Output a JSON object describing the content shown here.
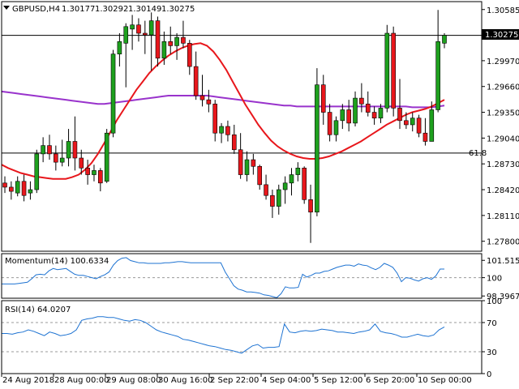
{
  "chart_data": [
    {
      "type": "candlestick",
      "title": "GBPUSD,H4",
      "ohlc_header": {
        "open": "1.30177",
        "high": "1.30292",
        "low": "1.30149",
        "close": "1.30275"
      },
      "symbol_icon": "triangle-down-icon",
      "current_price_label": "1.30275",
      "current_price": 1.30275,
      "fib_level": {
        "label": "61.8",
        "price": 1.2886
      },
      "ylim": [
        1.2768,
        1.3068
      ],
      "y_ticks": [
        "1.30585",
        "1.29970",
        "1.29660",
        "1.29350",
        "1.29040",
        "1.28730",
        "1.28420",
        "1.28110",
        "1.27800"
      ],
      "x_ticks": [
        "24 Aug 2018",
        "28 Aug 00:00",
        "29 Aug 08:00",
        "30 Aug 16:00",
        "2 Sep 22:00",
        "4 Sep 04:00",
        "5 Sep 12:00",
        "6 Sep 20:00",
        "10 Sep 00:00"
      ],
      "candles": [
        {
          "o": 1.285,
          "h": 1.2858,
          "l": 1.2838,
          "c": 1.2845
        },
        {
          "o": 1.2845,
          "h": 1.2852,
          "l": 1.283,
          "c": 1.284
        },
        {
          "o": 1.2838,
          "h": 1.2858,
          "l": 1.2834,
          "c": 1.2852
        },
        {
          "o": 1.2852,
          "h": 1.286,
          "l": 1.2828,
          "c": 1.2835
        },
        {
          "o": 1.2838,
          "h": 1.2852,
          "l": 1.283,
          "c": 1.2842
        },
        {
          "o": 1.2842,
          "h": 1.289,
          "l": 1.2838,
          "c": 1.2885
        },
        {
          "o": 1.2885,
          "h": 1.2905,
          "l": 1.2875,
          "c": 1.2895
        },
        {
          "o": 1.2895,
          "h": 1.2908,
          "l": 1.2878,
          "c": 1.2885
        },
        {
          "o": 1.2885,
          "h": 1.2895,
          "l": 1.2865,
          "c": 1.2875
        },
        {
          "o": 1.2875,
          "h": 1.2902,
          "l": 1.287,
          "c": 1.288
        },
        {
          "o": 1.288,
          "h": 1.2915,
          "l": 1.287,
          "c": 1.29
        },
        {
          "o": 1.29,
          "h": 1.293,
          "l": 1.2865,
          "c": 1.288
        },
        {
          "o": 1.288,
          "h": 1.289,
          "l": 1.286,
          "c": 1.2868
        },
        {
          "o": 1.2868,
          "h": 1.2878,
          "l": 1.2848,
          "c": 1.286
        },
        {
          "o": 1.286,
          "h": 1.2872,
          "l": 1.2852,
          "c": 1.2865
        },
        {
          "o": 1.2865,
          "h": 1.2868,
          "l": 1.284,
          "c": 1.285
        },
        {
          "o": 1.2852,
          "h": 1.2915,
          "l": 1.285,
          "c": 1.291
        },
        {
          "o": 1.291,
          "h": 1.301,
          "l": 1.2905,
          "c": 1.3005
        },
        {
          "o": 1.3005,
          "h": 1.303,
          "l": 1.299,
          "c": 1.302
        },
        {
          "o": 1.3018,
          "h": 1.3042,
          "l": 1.2965,
          "c": 1.3038
        },
        {
          "o": 1.3035,
          "h": 1.3052,
          "l": 1.301,
          "c": 1.304
        },
        {
          "o": 1.304,
          "h": 1.3048,
          "l": 1.302,
          "c": 1.303
        },
        {
          "o": 1.303,
          "h": 1.3045,
          "l": 1.3005,
          "c": 1.3028
        },
        {
          "o": 1.3028,
          "h": 1.3055,
          "l": 1.2985,
          "c": 1.3045
        },
        {
          "o": 1.3045,
          "h": 1.305,
          "l": 1.299,
          "c": 1.3
        },
        {
          "o": 1.3,
          "h": 1.3032,
          "l": 1.2992,
          "c": 1.302
        },
        {
          "o": 1.302,
          "h": 1.3038,
          "l": 1.3005,
          "c": 1.3015
        },
        {
          "o": 1.3015,
          "h": 1.303,
          "l": 1.2998,
          "c": 1.3025
        },
        {
          "o": 1.3025,
          "h": 1.3045,
          "l": 1.3012,
          "c": 1.3018
        },
        {
          "o": 1.3018,
          "h": 1.3022,
          "l": 1.298,
          "c": 1.299
        },
        {
          "o": 1.299,
          "h": 1.3008,
          "l": 1.295,
          "c": 1.2955
        },
        {
          "o": 1.2955,
          "h": 1.298,
          "l": 1.2942,
          "c": 1.295
        },
        {
          "o": 1.295,
          "h": 1.2962,
          "l": 1.2935,
          "c": 1.2945
        },
        {
          "o": 1.2945,
          "h": 1.295,
          "l": 1.29,
          "c": 1.291
        },
        {
          "o": 1.291,
          "h": 1.2922,
          "l": 1.2898,
          "c": 1.2918
        },
        {
          "o": 1.2918,
          "h": 1.2925,
          "l": 1.29,
          "c": 1.2908
        },
        {
          "o": 1.2908,
          "h": 1.292,
          "l": 1.2885,
          "c": 1.289
        },
        {
          "o": 1.289,
          "h": 1.291,
          "l": 1.2855,
          "c": 1.286
        },
        {
          "o": 1.286,
          "h": 1.2888,
          "l": 1.2852,
          "c": 1.2878
        },
        {
          "o": 1.2878,
          "h": 1.2885,
          "l": 1.286,
          "c": 1.287
        },
        {
          "o": 1.287,
          "h": 1.2872,
          "l": 1.2842,
          "c": 1.2848
        },
        {
          "o": 1.2848,
          "h": 1.286,
          "l": 1.283,
          "c": 1.2835
        },
        {
          "o": 1.2835,
          "h": 1.2842,
          "l": 1.2808,
          "c": 1.2822
        },
        {
          "o": 1.2822,
          "h": 1.2848,
          "l": 1.2812,
          "c": 1.2842
        },
        {
          "o": 1.2842,
          "h": 1.2858,
          "l": 1.2825,
          "c": 1.285
        },
        {
          "o": 1.285,
          "h": 1.2868,
          "l": 1.2835,
          "c": 1.286
        },
        {
          "o": 1.286,
          "h": 1.2875,
          "l": 1.2852,
          "c": 1.2868
        },
        {
          "o": 1.2868,
          "h": 1.287,
          "l": 1.2825,
          "c": 1.283
        },
        {
          "o": 1.283,
          "h": 1.2848,
          "l": 1.2778,
          "c": 1.2815
        },
        {
          "o": 1.2815,
          "h": 1.2988,
          "l": 1.281,
          "c": 1.2968
        },
        {
          "o": 1.2968,
          "h": 1.298,
          "l": 1.292,
          "c": 1.2935
        },
        {
          "o": 1.2935,
          "h": 1.2945,
          "l": 1.29,
          "c": 1.2908
        },
        {
          "o": 1.2908,
          "h": 1.293,
          "l": 1.29,
          "c": 1.2925
        },
        {
          "o": 1.2925,
          "h": 1.2945,
          "l": 1.2915,
          "c": 1.2938
        },
        {
          "o": 1.2938,
          "h": 1.295,
          "l": 1.2912,
          "c": 1.2922
        },
        {
          "o": 1.2922,
          "h": 1.296,
          "l": 1.2918,
          "c": 1.2952
        },
        {
          "o": 1.2952,
          "h": 1.297,
          "l": 1.2935,
          "c": 1.2945
        },
        {
          "o": 1.2945,
          "h": 1.296,
          "l": 1.293,
          "c": 1.2935
        },
        {
          "o": 1.2935,
          "h": 1.2942,
          "l": 1.292,
          "c": 1.2928
        },
        {
          "o": 1.2928,
          "h": 1.2945,
          "l": 1.2922,
          "c": 1.294
        },
        {
          "o": 1.294,
          "h": 1.304,
          "l": 1.2935,
          "c": 1.303
        },
        {
          "o": 1.303,
          "h": 1.3038,
          "l": 1.293,
          "c": 1.294
        },
        {
          "o": 1.294,
          "h": 1.2975,
          "l": 1.2915,
          "c": 1.2925
        },
        {
          "o": 1.2925,
          "h": 1.2935,
          "l": 1.2915,
          "c": 1.292
        },
        {
          "o": 1.292,
          "h": 1.2935,
          "l": 1.2912,
          "c": 1.2928
        },
        {
          "o": 1.2928,
          "h": 1.2932,
          "l": 1.2905,
          "c": 1.291
        },
        {
          "o": 1.291,
          "h": 1.2928,
          "l": 1.2895,
          "c": 1.29
        },
        {
          "o": 1.29,
          "h": 1.2948,
          "l": 1.29,
          "c": 1.2938
        },
        {
          "o": 1.2938,
          "h": 1.3058,
          "l": 1.2935,
          "c": 1.302
        },
        {
          "o": 1.3018,
          "h": 1.303,
          "l": 1.3012,
          "c": 1.30275
        }
      ],
      "series": [
        {
          "name": "",
          "color": "#e8171c",
          "values": [
            1.2872,
            1.2868,
            1.2865,
            1.2862,
            1.286,
            1.2858,
            1.2857,
            1.2856,
            1.2855,
            1.2855,
            1.2855,
            1.2857,
            1.286,
            1.2866,
            1.2874,
            1.2885,
            1.2898,
            1.2912,
            1.2926,
            1.2938,
            1.295,
            1.2962,
            1.2972,
            1.2982,
            1.299,
            1.2997,
            1.3003,
            1.3008,
            1.3012,
            1.3015,
            1.3017,
            1.3018,
            1.3015,
            1.3008,
            1.2998,
            1.2986,
            1.2972,
            1.2958,
            1.2944,
            1.2932,
            1.292,
            1.291,
            1.2901,
            1.2894,
            1.2889,
            1.2885,
            1.2882,
            1.288,
            1.2879,
            1.2879,
            1.288,
            1.2882,
            1.2885,
            1.2888,
            1.2892,
            1.2896,
            1.29,
            1.2905,
            1.291,
            1.2915,
            1.292,
            1.2924,
            1.2928,
            1.2932,
            1.2935,
            1.2937,
            1.2939,
            1.2942,
            1.2946,
            1.295
          ]
        },
        {
          "name": "",
          "color": "#9933cc",
          "values": [
            1.296,
            1.2959,
            1.2958,
            1.2957,
            1.2956,
            1.2955,
            1.2954,
            1.2953,
            1.2952,
            1.2951,
            1.295,
            1.2949,
            1.2948,
            1.2947,
            1.2946,
            1.2945,
            1.2945,
            1.2946,
            1.2947,
            1.2948,
            1.2949,
            1.295,
            1.2951,
            1.2952,
            1.2953,
            1.2954,
            1.2955,
            1.2955,
            1.2955,
            1.2955,
            1.2955,
            1.2955,
            1.2955,
            1.2954,
            1.2953,
            1.2952,
            1.2951,
            1.295,
            1.2949,
            1.2948,
            1.2947,
            1.2946,
            1.2945,
            1.2944,
            1.2943,
            1.2943,
            1.2942,
            1.2942,
            1.2942,
            1.2942,
            1.2942,
            1.2942,
            1.2942,
            1.2942,
            1.2942,
            1.2942,
            1.2942,
            1.2942,
            1.2942,
            1.2942,
            1.2942,
            1.2942,
            1.2942,
            1.2942,
            1.2941,
            1.2941,
            1.2941,
            1.2941,
            1.2942,
            1.2943
          ]
        }
      ]
    },
    {
      "type": "line",
      "title": "Momentum(14) 100.6334",
      "ylim": [
        98.2,
        102.1
      ],
      "y_ticks": [
        "101.5152",
        "100",
        "98.3967"
      ],
      "levels": [
        100
      ],
      "series": [
        {
          "name": "",
          "color": "#1e73d2",
          "values": [
            99.45,
            99.45,
            99.45,
            99.45,
            99.5,
            99.55,
            99.6,
            99.9,
            100.25,
            100.3,
            100.25,
            100.6,
            100.8,
            100.7,
            100.75,
            100.8,
            100.55,
            100.3,
            100.2,
            100.2,
            100.1,
            100.0,
            99.9,
            100.1,
            100.25,
            100.5,
            101.1,
            101.5,
            101.7,
            101.75,
            101.5,
            101.4,
            101.3,
            101.3,
            101.25,
            101.25,
            101.25,
            101.25,
            101.3,
            101.3,
            101.35,
            101.4,
            101.4,
            101.35,
            101.3,
            101.3,
            101.3,
            101.3,
            101.3,
            101.3,
            101.3,
            101.3,
            100.5,
            99.9,
            99.3,
            99.0,
            98.9,
            98.75,
            98.75,
            98.7,
            98.65,
            98.5,
            98.45,
            98.35,
            98.25,
            98.6,
            99.2,
            99.1,
            99.1,
            99.15,
            100.3,
            100.05,
            100.2,
            100.4,
            100.4,
            100.55,
            100.6,
            100.75,
            100.9,
            101.0,
            101.1,
            101.1,
            101.0,
            101.2,
            101.1,
            101.05,
            100.85,
            100.7,
            100.9,
            101.25,
            101.1,
            100.9,
            100.4,
            99.65,
            100.0,
            99.95,
            99.8,
            99.7,
            99.9,
            100.0,
            99.85,
            100.15,
            100.75,
            100.75
          ]
        }
      ]
    },
    {
      "type": "line",
      "title": "RSI(14) 64.0207",
      "ylim": [
        0,
        100
      ],
      "y_ticks": [
        "100",
        "70",
        "30",
        "0"
      ],
      "levels": [
        70,
        30
      ],
      "series": [
        {
          "name": "",
          "color": "#1e73d2",
          "values": [
            55,
            55,
            54,
            56,
            57,
            60,
            58,
            55,
            52,
            57,
            55,
            52,
            53,
            55,
            60,
            73,
            75,
            76,
            78,
            78,
            77,
            77,
            75,
            73,
            72,
            74,
            73,
            70,
            65,
            60,
            57,
            55,
            53,
            51,
            47,
            46,
            44,
            42,
            40,
            38,
            37,
            35,
            33,
            32,
            30,
            28,
            33,
            38,
            40,
            35,
            36,
            36,
            37,
            68,
            57,
            56,
            58,
            59,
            58,
            59,
            61,
            60,
            59,
            57,
            57,
            56,
            55,
            57,
            58,
            60,
            68,
            58,
            56,
            55,
            53,
            50,
            50,
            52,
            54,
            52,
            51,
            53,
            60,
            64
          ]
        }
      ]
    }
  ]
}
